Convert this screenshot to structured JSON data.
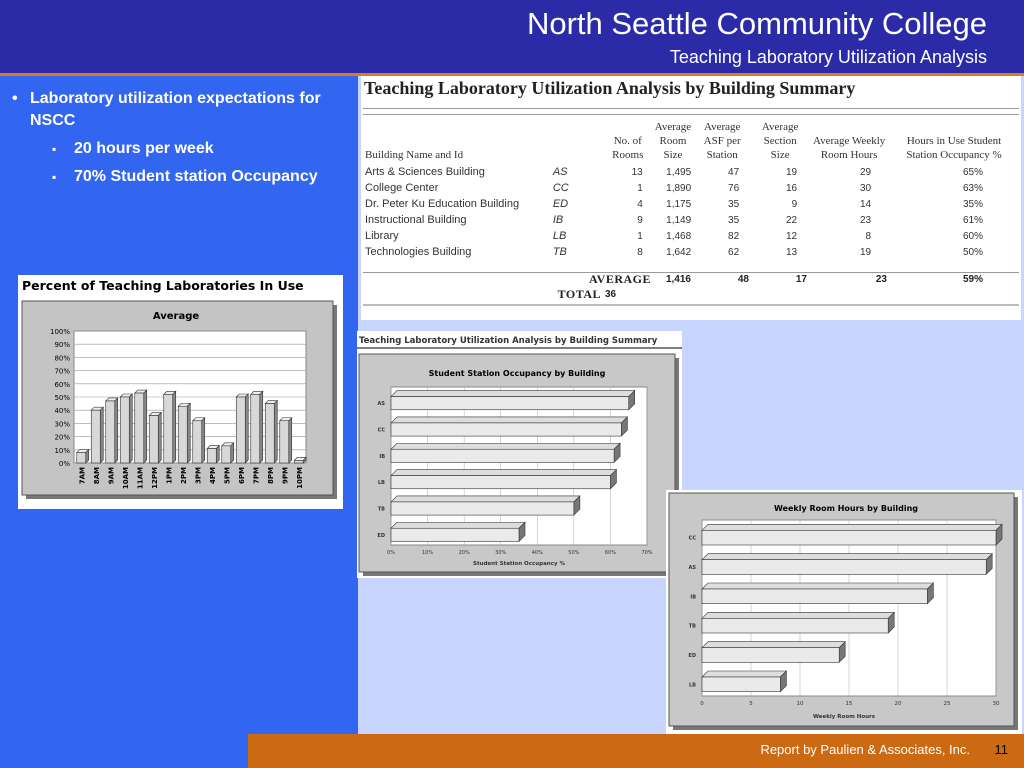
{
  "header": {
    "title": "North Seattle Community College",
    "subtitle": "Teaching Laboratory Utilization Analysis"
  },
  "bullets": {
    "main": "Laboratory utilization expectations for NSCC",
    "subs": [
      "20 hours per week",
      "70% Student station Occupancy"
    ]
  },
  "summary_table": {
    "title": "Teaching Laboratory Utilization Analysis by Building Summary",
    "columns": [
      "Building Name and Id",
      "No. of Rooms",
      "Average Room Size",
      "Average ASF per Station",
      "Average Section Size",
      "Average Weekly Room Hours",
      "Hours in Use Student Station Occupancy %"
    ],
    "rows": [
      {
        "name": "Arts & Sciences Building",
        "id": "AS",
        "rooms": "13",
        "room_size": "1,495",
        "asf": "47",
        "section": "19",
        "hours": "29",
        "occupancy": "65%"
      },
      {
        "name": "College Center",
        "id": "CC",
        "rooms": "1",
        "room_size": "1,890",
        "asf": "76",
        "section": "16",
        "hours": "30",
        "occupancy": "63%"
      },
      {
        "name": "Dr. Peter Ku Education Building",
        "id": "ED",
        "rooms": "4",
        "room_size": "1,175",
        "asf": "35",
        "section": "9",
        "hours": "14",
        "occupancy": "35%"
      },
      {
        "name": "Instructional Building",
        "id": "IB",
        "rooms": "9",
        "room_size": "1,149",
        "asf": "35",
        "section": "22",
        "hours": "23",
        "occupancy": "61%"
      },
      {
        "name": "Library",
        "id": "LB",
        "rooms": "1",
        "room_size": "1,468",
        "asf": "82",
        "section": "12",
        "hours": "8",
        "occupancy": "60%"
      },
      {
        "name": "Technologies Building",
        "id": "TB",
        "rooms": "8",
        "room_size": "1,642",
        "asf": "62",
        "section": "13",
        "hours": "19",
        "occupancy": "50%"
      }
    ],
    "average": {
      "label": "AVERAGE",
      "room_size": "1,416",
      "asf": "48",
      "section": "17",
      "hours": "23",
      "occupancy": "59%"
    },
    "total": {
      "label": "TOTAL",
      "rooms": "36"
    }
  },
  "chart_data": [
    {
      "type": "bar",
      "title": "Percent of Teaching Laboratories In Use",
      "subtitle": "Average",
      "categories": [
        "7AM",
        "8AM",
        "9AM",
        "10AM",
        "11AM",
        "12PM",
        "1PM",
        "2PM",
        "3PM",
        "4PM",
        "5PM",
        "6PM",
        "7PM",
        "8PM",
        "9PM",
        "10PM"
      ],
      "values": [
        8,
        40,
        47,
        50,
        53,
        36,
        52,
        43,
        32,
        11,
        13,
        50,
        52,
        45,
        32,
        2
      ],
      "ylim": [
        0,
        100
      ],
      "yticks": [
        "0%",
        "10%",
        "20%",
        "30%",
        "40%",
        "50%",
        "60%",
        "70%",
        "80%",
        "90%",
        "100%"
      ],
      "grid": true
    },
    {
      "type": "bar",
      "orientation": "horizontal",
      "caption": "Teaching Laboratory Utilization Analysis by Building Summary",
      "title": "Student Station Occupancy by Building",
      "xlabel": "Student Station Occupancy %",
      "categories": [
        "AS",
        "CC",
        "IB",
        "LB",
        "TB",
        "ED"
      ],
      "values": [
        65,
        63,
        61,
        60,
        50,
        35
      ],
      "xlim": [
        0,
        70
      ],
      "xticks": [
        "0%",
        "10%",
        "20%",
        "30%",
        "40%",
        "50%",
        "60%",
        "70%"
      ],
      "grid": true
    },
    {
      "type": "bar",
      "orientation": "horizontal",
      "title": "Weekly Room Hours by Building",
      "xlabel": "Weekly Room Hours",
      "categories": [
        "CC",
        "AS",
        "IB",
        "TB",
        "ED",
        "LB"
      ],
      "values": [
        30,
        29,
        23,
        19,
        14,
        8
      ],
      "xlim": [
        0,
        30
      ],
      "xticks": [
        "0",
        "5",
        "10",
        "15",
        "20",
        "25",
        "30"
      ],
      "grid": true
    }
  ],
  "footer": {
    "credit": "Report by Paulien & Associates, Inc.",
    "page": "11"
  }
}
